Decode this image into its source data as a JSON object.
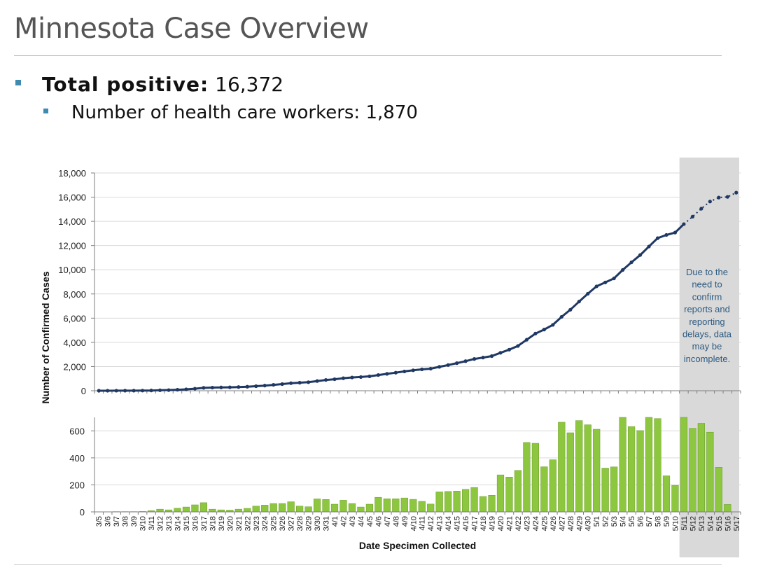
{
  "page": {
    "title": "Minnesota Case Overview",
    "total_label": "Total positive:",
    "total_value": "16,372",
    "hcw_label": "Number of health care workers:",
    "hcw_value": "1,870"
  },
  "colors": {
    "line": "#1f3864",
    "bar": "#8dc63f",
    "shade": "#d9d9d9",
    "bullet": "#3d8bb0",
    "note": "#2e5b82"
  },
  "chart_data": [
    {
      "type": "line",
      "ylabel": "Number of Confirmed Cases",
      "ylim": [
        0,
        18000
      ],
      "yticks": [
        0,
        2000,
        4000,
        6000,
        8000,
        10000,
        12000,
        14000,
        16000,
        18000
      ],
      "ytick_labels": [
        "0",
        "2,000",
        "4,000",
        "6,000",
        "8,000",
        "10,000",
        "12,000",
        "14,000",
        "16,000",
        "18,000"
      ],
      "shaded_from": "5/11",
      "annotation": [
        "Due to the",
        "need to",
        "confirm",
        "reports and",
        "reporting",
        "delays, data",
        "may be",
        "incomplete."
      ],
      "x": [
        "3/5",
        "3/6",
        "3/7",
        "3/8",
        "3/9",
        "3/10",
        "3/11",
        "3/12",
        "3/13",
        "3/14",
        "3/15",
        "3/16",
        "3/17",
        "3/18",
        "3/19",
        "3/20",
        "3/21",
        "3/22",
        "3/23",
        "3/24",
        "3/25",
        "3/26",
        "3/27",
        "3/28",
        "3/29",
        "3/30",
        "3/31",
        "4/1",
        "4/2",
        "4/3",
        "4/4",
        "4/5",
        "4/6",
        "4/7",
        "4/8",
        "4/9",
        "4/10",
        "4/11",
        "4/12",
        "4/13",
        "4/14",
        "4/15",
        "4/16",
        "4/17",
        "4/18",
        "4/19",
        "4/20",
        "4/21",
        "4/22",
        "4/23",
        "4/24",
        "4/25",
        "4/26",
        "4/27",
        "4/28",
        "4/29",
        "4/30",
        "5/1",
        "5/2",
        "5/3",
        "5/4",
        "5/5",
        "5/6",
        "5/7",
        "5/8",
        "5/9",
        "5/10",
        "5/11",
        "5/12",
        "5/13",
        "5/14",
        "5/15",
        "5/16",
        "5/17"
      ],
      "values": [
        1,
        2,
        4,
        6,
        8,
        11,
        20,
        40,
        55,
        82,
        118,
        170,
        238,
        258,
        273,
        286,
        306,
        332,
        375,
        425,
        487,
        549,
        624,
        667,
        705,
        801,
        893,
        950,
        1035,
        1097,
        1133,
        1190,
        1298,
        1395,
        1492,
        1596,
        1689,
        1767,
        1825,
        1973,
        2124,
        2278,
        2445,
        2626,
        2740,
        2863,
        3137,
        3395,
        3702,
        4216,
        4724,
        5058,
        5444,
        6108,
        6694,
        7370,
        8015,
        8627,
        8951,
        9284,
        9984,
        10616,
        11218,
        11918,
        12609,
        12876,
        13072,
        13772,
        14391,
        15047,
        15637,
        15967,
        16022,
        16372
      ]
    },
    {
      "type": "bar",
      "xlabel": "Date Specimen Collected",
      "ylim": [
        0,
        700
      ],
      "yticks": [
        0,
        200,
        400,
        600
      ],
      "ytick_labels": [
        "0",
        "200",
        "400",
        "600"
      ],
      "x": [
        "3/5",
        "3/6",
        "3/7",
        "3/8",
        "3/9",
        "3/10",
        "3/11",
        "3/12",
        "3/13",
        "3/14",
        "3/15",
        "3/16",
        "3/17",
        "3/18",
        "3/19",
        "3/20",
        "3/21",
        "3/22",
        "3/23",
        "3/24",
        "3/25",
        "3/26",
        "3/27",
        "3/28",
        "3/29",
        "3/30",
        "3/31",
        "4/1",
        "4/2",
        "4/3",
        "4/4",
        "4/5",
        "4/6",
        "4/7",
        "4/8",
        "4/9",
        "4/10",
        "4/11",
        "4/12",
        "4/13",
        "4/14",
        "4/15",
        "4/16",
        "4/17",
        "4/18",
        "4/19",
        "4/20",
        "4/21",
        "4/22",
        "4/23",
        "4/24",
        "4/25",
        "4/26",
        "4/27",
        "4/28",
        "4/29",
        "4/30",
        "5/1",
        "5/2",
        "5/3",
        "5/4",
        "5/5",
        "5/6",
        "5/7",
        "5/8",
        "5/9",
        "5/10",
        "5/11",
        "5/12",
        "5/13",
        "5/14",
        "5/15",
        "5/16",
        "5/17"
      ],
      "values": [
        1,
        1,
        2,
        2,
        2,
        3,
        9,
        20,
        15,
        27,
        36,
        52,
        68,
        20,
        15,
        13,
        20,
        26,
        43,
        50,
        62,
        62,
        75,
        43,
        38,
        96,
        92,
        57,
        86,
        62,
        36,
        57,
        108,
        97,
        97,
        103,
        93,
        78,
        58,
        148,
        151,
        154,
        167,
        181,
        114,
        123,
        274,
        258,
        307,
        514,
        508,
        334,
        386,
        664,
        586,
        676,
        645,
        612,
        324,
        333,
        700,
        632,
        602,
        700,
        691,
        267,
        196,
        700,
        619,
        656,
        590,
        330,
        55,
        0
      ]
    }
  ]
}
